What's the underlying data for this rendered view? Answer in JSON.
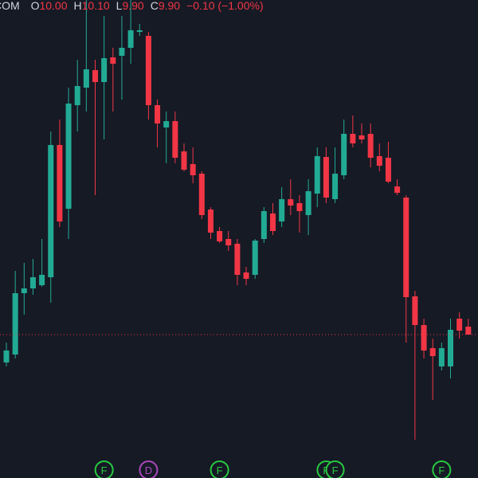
{
  "chart_data": {
    "type": "candlestick",
    "legend": {
      "symbol": "COM",
      "items": [
        {
          "key": "O",
          "text": "10.00"
        },
        {
          "key": "H",
          "text": "10.10"
        },
        {
          "key": "L",
          "text": "9.90"
        },
        {
          "key": "C",
          "text": "9.90"
        }
      ],
      "change": "−0.10 (−1.00%)"
    },
    "ylim": [
      8.1,
      14.1
    ],
    "up_color": "#22ab94",
    "down_color": "#f23645",
    "last_price_line": true,
    "open": [
      9.55,
      9.65,
      10.42,
      10.48,
      10.52,
      10.62,
      12.28,
      11.48,
      12.78,
      13.0,
      13.22,
      13.07,
      13.38,
      13.4,
      13.5,
      13.7,
      13.65,
      12.78,
      12.5,
      12.58,
      12.2,
      12.04,
      11.92,
      11.47,
      11.2,
      11.1,
      11.04,
      10.68,
      10.65,
      11.1,
      11.42,
      11.32,
      11.6,
      11.55,
      11.4,
      11.67,
      12.13,
      11.6,
      11.9,
      12.42,
      12.4,
      12.42,
      12.14,
      12.12,
      11.76,
      11.62,
      10.38,
      10.02,
      9.73,
      9.5,
      9.5,
      10.1,
      10.0
    ],
    "high": [
      9.8,
      10.7,
      10.8,
      10.85,
      11.1,
      12.45,
      12.6,
      13.0,
      13.35,
      14.1,
      13.35,
      13.9,
      13.5,
      13.9,
      14.1,
      13.8,
      13.7,
      12.85,
      12.7,
      12.7,
      12.3,
      12.25,
      11.95,
      11.5,
      11.25,
      11.2,
      11.1,
      10.75,
      11.1,
      11.5,
      11.55,
      11.75,
      11.85,
      11.65,
      11.85,
      12.25,
      12.25,
      12.25,
      12.6,
      12.65,
      12.55,
      12.55,
      12.3,
      12.32,
      11.85,
      11.65,
      10.45,
      10.1,
      9.85,
      9.8,
      10.1,
      10.18,
      10.1
    ],
    "low": [
      9.5,
      9.6,
      10.15,
      10.4,
      10.5,
      10.3,
      11.25,
      11.1,
      12.45,
      12.7,
      11.65,
      12.35,
      12.7,
      12.85,
      13.3,
      13.65,
      12.6,
      12.25,
      12.05,
      12.05,
      11.95,
      11.8,
      11.35,
      11.1,
      11.05,
      10.95,
      10.52,
      10.52,
      10.6,
      11.05,
      11.15,
      11.25,
      11.4,
      11.18,
      11.15,
      11.5,
      11.55,
      11.55,
      11.85,
      12.25,
      12.3,
      12.0,
      11.95,
      11.8,
      11.65,
      9.8,
      8.58,
      9.6,
      9.08,
      9.45,
      9.35,
      9.85,
      9.9
    ],
    "close": [
      9.7,
      10.42,
      10.48,
      10.62,
      10.65,
      12.28,
      11.32,
      12.8,
      13.02,
      13.23,
      13.07,
      13.37,
      13.3,
      13.5,
      13.72,
      13.72,
      12.78,
      12.55,
      12.58,
      12.12,
      11.97,
      11.9,
      11.4,
      11.18,
      11.07,
      11.02,
      10.65,
      10.6,
      11.08,
      11.45,
      11.2,
      11.6,
      11.52,
      11.45,
      11.7,
      12.14,
      11.62,
      11.92,
      12.42,
      12.3,
      12.35,
      12.12,
      12.02,
      11.82,
      11.68,
      10.37,
      10.02,
      9.7,
      9.63,
      9.73,
      9.96,
      9.95,
      9.9
    ],
    "events": [
      {
        "index": 11,
        "label": "F",
        "color": "#27c93f"
      },
      {
        "index": 16,
        "label": "D",
        "color": "#ab47bc"
      },
      {
        "index": 24,
        "label": "F",
        "color": "#27c93f"
      },
      {
        "index": 36,
        "label": "F",
        "color": "#27c93f"
      },
      {
        "index": 37,
        "label": "F",
        "color": "#27c93f"
      },
      {
        "index": 49,
        "label": "F",
        "color": "#27c93f"
      }
    ]
  }
}
